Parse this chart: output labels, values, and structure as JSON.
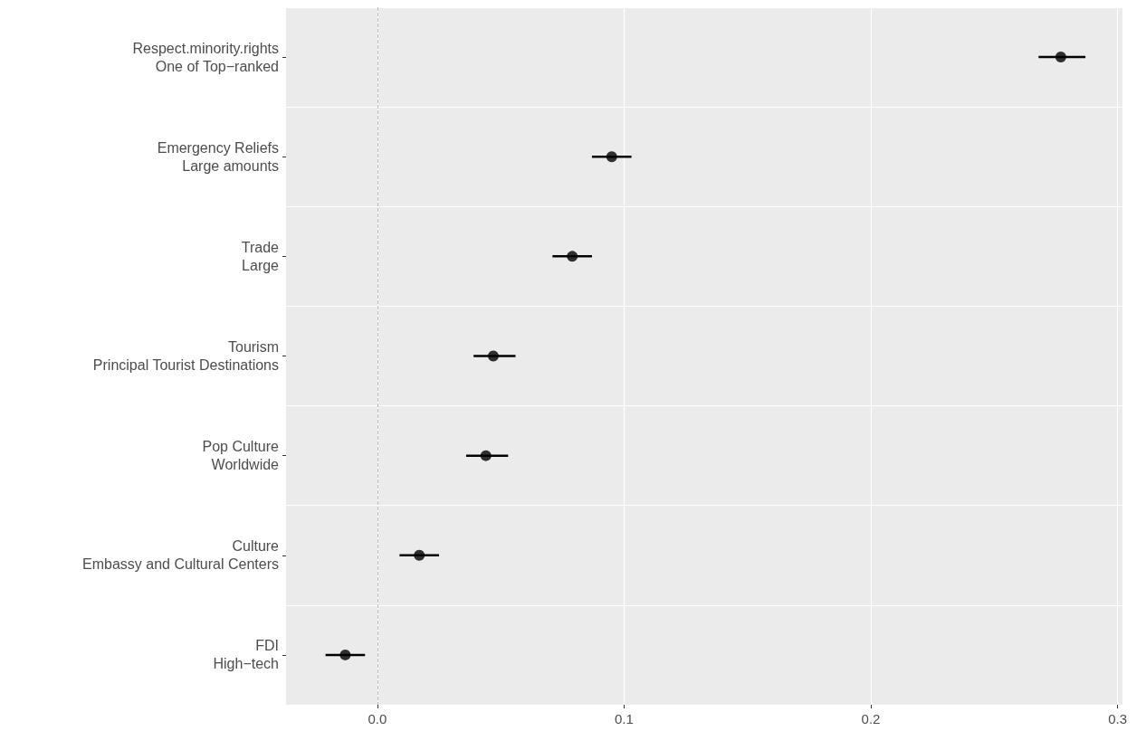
{
  "chart_data": {
    "type": "scatter",
    "orientation": "horizontal",
    "categories": [
      "Respect.minority.rights\nOne of Top−ranked",
      "Emergency Reliefs\nLarge amounts",
      "Trade\nLarge",
      "Tourism\nPrincipal Tourist Destinations",
      "Pop Culture\nWorldwide",
      "Culture\nEmbassy and Cultural Centers",
      "FDI\nHigh−tech"
    ],
    "values": [
      0.277,
      0.095,
      0.079,
      0.047,
      0.044,
      0.017,
      -0.013
    ],
    "errors": [
      [
        0.268,
        0.287
      ],
      [
        0.087,
        0.103
      ],
      [
        0.071,
        0.087
      ],
      [
        0.039,
        0.056
      ],
      [
        0.036,
        0.053
      ],
      [
        0.009,
        0.025
      ],
      [
        -0.021,
        -0.005
      ]
    ],
    "color": "#000000",
    "marker": "circle",
    "xlim": [
      -0.037,
      0.302
    ],
    "xticks": [
      {
        "value": 0,
        "label": "0.0"
      },
      0.1,
      0.2,
      0.3
    ],
    "grid": true,
    "ref_lines": [
      {
        "axis": "x",
        "value": 0,
        "color": "#bdbdbd",
        "line_style": "dashed"
      }
    ]
  }
}
